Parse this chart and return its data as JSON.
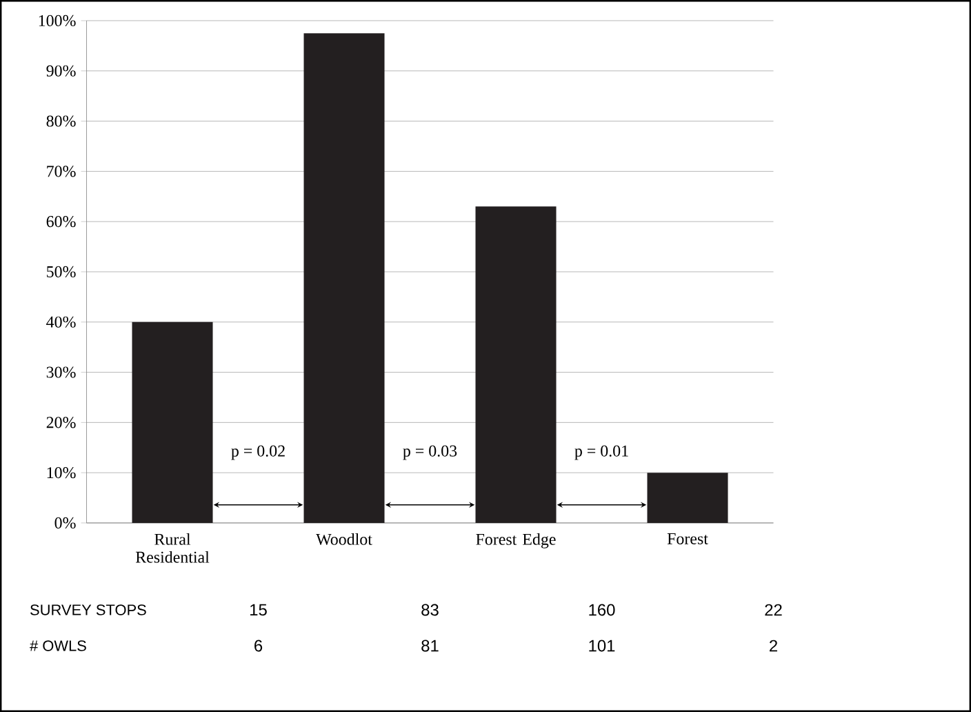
{
  "chart_data": {
    "type": "bar",
    "categories": [
      "Rural Residential",
      "Woodlot",
      "Forest Edge",
      "Forest"
    ],
    "values": [
      40,
      97.5,
      63,
      10
    ],
    "color": "#231f20",
    "ylim": [
      0,
      100
    ],
    "yticks": [
      {
        "value": 0,
        "label": "0%"
      },
      {
        "value": 10,
        "label": "10%"
      },
      {
        "value": 20,
        "label": "20%"
      },
      {
        "value": 30,
        "label": "30%"
      },
      {
        "value": 40,
        "label": "40%"
      },
      {
        "value": 50,
        "label": "50%"
      },
      {
        "value": 60,
        "label": "60%"
      },
      {
        "value": 70,
        "label": "70%"
      },
      {
        "value": 80,
        "label": "80%"
      },
      {
        "value": 90,
        "label": "90%"
      },
      {
        "value": 100,
        "label": "100%"
      }
    ],
    "grid": "y",
    "annotations": [
      "p = 0.02",
      "p = 0.03",
      "p = 0.01",
      "SURVEY STOPS",
      "15",
      "83",
      "160",
      "22",
      "# OWLS",
      "6",
      "81",
      "101",
      "2"
    ]
  }
}
